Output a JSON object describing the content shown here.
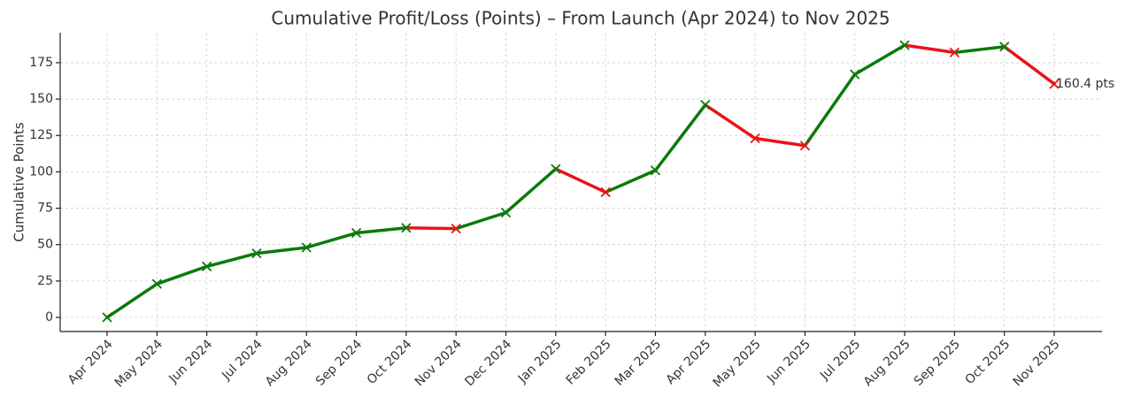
{
  "chart_data": {
    "type": "line",
    "title": "Cumulative Profit/Loss (Points) – From Launch (Apr 2024) to Nov 2025",
    "y_label": "Cumulative Points",
    "categories": [
      "Apr 2024",
      "May 2024",
      "Jun 2024",
      "Jul 2024",
      "Aug 2024",
      "Sep 2024",
      "Oct 2024",
      "Nov 2024",
      "Dec 2024",
      "Jan 2025",
      "Feb 2025",
      "Mar 2025",
      "Apr 2025",
      "May 2025",
      "Jun 2025",
      "Jul 2025",
      "Aug 2025",
      "Sep 2025",
      "Oct 2025",
      "Nov 2025"
    ],
    "values": [
      0,
      23,
      35,
      44,
      48,
      58,
      61.5,
      61,
      72,
      102,
      86,
      101,
      146,
      123,
      118,
      167,
      187,
      182,
      186,
      160.4
    ],
    "end_label": "160.4 pts",
    "up_color": "#0a7a0a",
    "down_color": "#e8141a",
    "ylim": [
      -9.7,
      195.6
    ],
    "yticks": [
      0,
      25,
      50,
      75,
      100,
      125,
      150,
      175
    ],
    "grid": true
  }
}
